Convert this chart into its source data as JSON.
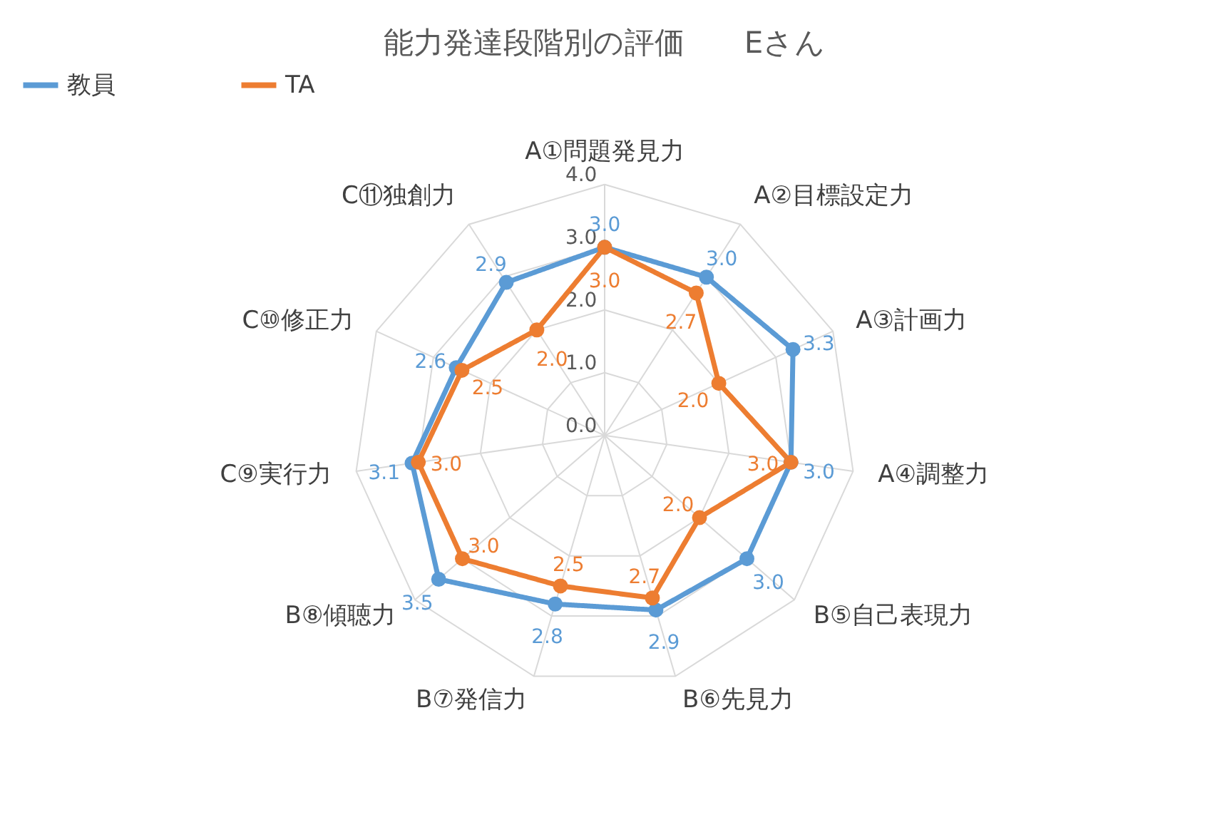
{
  "chart_data": {
    "type": "radar",
    "title": "能力発達段階別の評価　　Eさん",
    "categories": [
      "A①問題発見力",
      "A②目標設定力",
      "A③計画力",
      "A④調整力",
      "B⑤自己表現力",
      "B⑥先見力",
      "B⑦発信力",
      "B⑧傾聴力",
      "C⑨実行力",
      "C⑩修正力",
      "C⑪独創力"
    ],
    "series": [
      {
        "name": "教員",
        "color": "#5b9bd5",
        "values": [
          3.0,
          3.0,
          3.3,
          3.0,
          3.0,
          2.9,
          2.8,
          3.5,
          3.1,
          2.6,
          2.9
        ],
        "value_labels": [
          "3.0",
          "3.0",
          "3.3",
          "3.0",
          "3.0",
          "2.9",
          "2.8",
          "3.5",
          "3.1",
          "2.6",
          "2.9"
        ]
      },
      {
        "name": "TA",
        "color": "#ed7d31",
        "values": [
          3.0,
          2.7,
          2.0,
          3.0,
          2.0,
          2.7,
          2.5,
          3.0,
          3.0,
          2.5,
          2.0
        ],
        "value_labels": [
          "3.0",
          "2.7",
          "2.0",
          "3.0",
          "2.0",
          "2.7",
          "2.5",
          "3.0",
          "3.0",
          "2.5",
          "2.0"
        ]
      }
    ],
    "ylim": [
      0,
      4
    ],
    "yticks": [
      {
        "value": 0,
        "label": "0.0"
      },
      {
        "value": 1,
        "label": "1.0"
      },
      {
        "value": 2,
        "label": "2.0"
      },
      {
        "value": 3,
        "label": "3.0"
      },
      {
        "value": 4,
        "label": "4.0"
      }
    ],
    "grid": true,
    "legend": "top",
    "marker": "circle",
    "line_style": "solid"
  }
}
